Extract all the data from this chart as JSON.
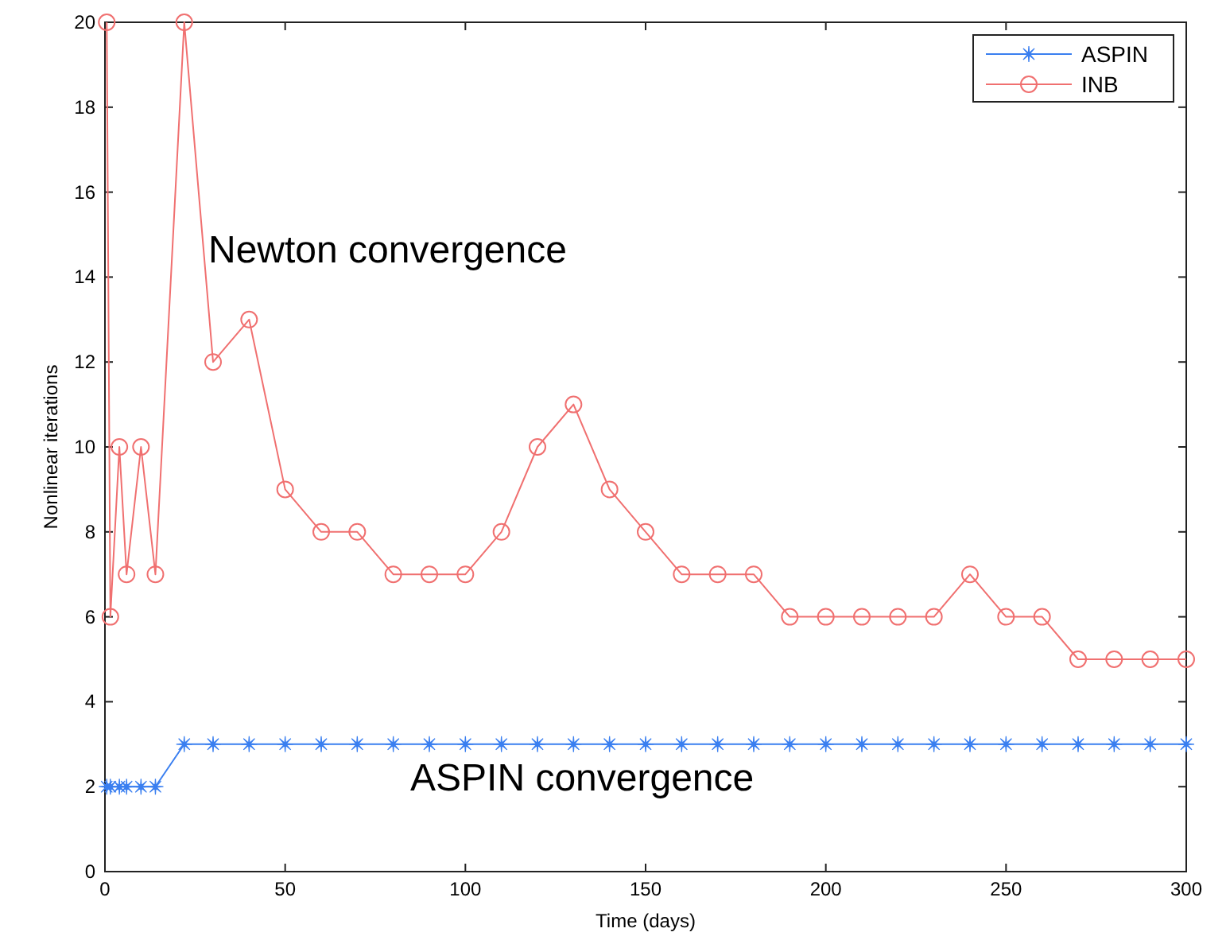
{
  "chart_data": {
    "type": "line",
    "xlabel": "Time (days)",
    "ylabel": "Nonlinear iterations",
    "xlim": [
      0,
      300
    ],
    "ylim": [
      0,
      20
    ],
    "xticks": [
      0,
      50,
      100,
      150,
      200,
      250,
      300
    ],
    "yticks": [
      0,
      2,
      4,
      6,
      8,
      10,
      12,
      14,
      16,
      18,
      20
    ],
    "legend": "top right",
    "grid": false,
    "x": [
      0.5,
      1.5,
      4,
      6,
      10,
      14,
      22,
      30,
      40,
      50,
      60,
      70,
      80,
      90,
      100,
      110,
      120,
      130,
      140,
      150,
      160,
      170,
      180,
      190,
      200,
      210,
      220,
      230,
      240,
      250,
      260,
      270,
      280,
      290,
      300
    ],
    "series": [
      {
        "name": "ASPIN",
        "color": "#3a7ff0",
        "marker": "star",
        "values": [
          2,
          2,
          2,
          2,
          2,
          2,
          3,
          3,
          3,
          3,
          3,
          3,
          3,
          3,
          3,
          3,
          3,
          3,
          3,
          3,
          3,
          3,
          3,
          3,
          3,
          3,
          3,
          3,
          3,
          3,
          3,
          3,
          3,
          3,
          3
        ]
      },
      {
        "name": "INB",
        "color": "#f07070",
        "marker": "circle",
        "values": [
          20,
          6,
          10,
          7,
          10,
          7,
          20,
          12,
          13,
          9,
          8,
          8,
          7,
          7,
          7,
          8,
          10,
          11,
          9,
          8,
          7,
          7,
          7,
          6,
          6,
          6,
          6,
          6,
          7,
          6,
          6,
          5,
          5,
          5,
          5
        ]
      }
    ],
    "annotations": [
      "Newton convergence",
      "ASPIN convergence"
    ]
  }
}
